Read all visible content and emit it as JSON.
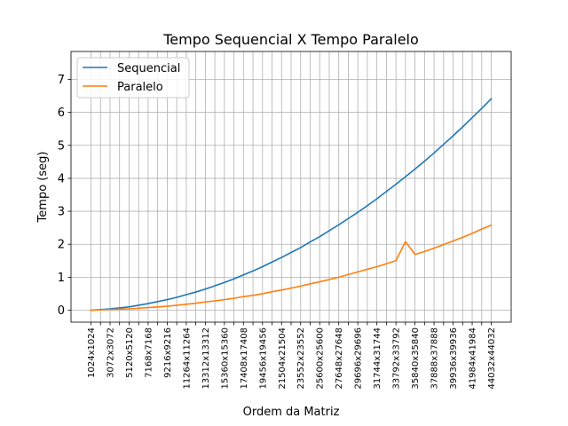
{
  "chart_data": {
    "type": "line",
    "title": "Tempo Sequencial X Tempo Paralelo",
    "xlabel": "Ordem da Matriz",
    "ylabel": "Tempo (seg)",
    "ylim": [
      -0.35,
      7.9
    ],
    "yticks": [
      0,
      1,
      2,
      3,
      4,
      5,
      6,
      7
    ],
    "grid": true,
    "legend_position": "top-left",
    "x_tick_labels": [
      "1024x1024",
      "3072x3072",
      "5120x5120",
      "7168x7168",
      "9216x9216",
      "11264x11264",
      "13312x13312",
      "15360x15360",
      "17408x17408",
      "19456x19456",
      "21504x21504",
      "23552x23552",
      "25600x25600",
      "27648x27648",
      "29696x29696",
      "31744x31744",
      "33792x33792",
      "35840x35840",
      "37888x37888",
      "39936x39936",
      "41984x41984",
      "44032x44032"
    ],
    "x_orders": [
      1024,
      2048,
      3072,
      4096,
      5120,
      6144,
      7168,
      8192,
      9216,
      10240,
      11264,
      12288,
      13312,
      14336,
      15360,
      16384,
      17408,
      18432,
      19456,
      20480,
      21504,
      22528,
      23552,
      24576,
      25600,
      26624,
      27648,
      28672,
      29696,
      30720,
      31744,
      32768,
      33792,
      34816,
      35840,
      36864,
      37888,
      38912,
      39936,
      40960,
      41984,
      43008,
      44032
    ],
    "series": [
      {
        "name": "Sequencial",
        "color": "#1f77b4",
        "values": [
          0.0,
          0.02,
          0.04,
          0.07,
          0.1,
          0.15,
          0.2,
          0.26,
          0.32,
          0.39,
          0.47,
          0.55,
          0.64,
          0.74,
          0.84,
          0.95,
          1.07,
          1.19,
          1.32,
          1.46,
          1.6,
          1.75,
          1.9,
          2.07,
          2.23,
          2.41,
          2.59,
          2.78,
          2.97,
          3.17,
          3.38,
          3.6,
          3.82,
          4.05,
          4.28,
          4.52,
          4.77,
          5.03,
          5.29,
          5.56,
          5.84,
          6.12,
          6.41
        ]
      },
      {
        "name": "Paralelo",
        "color": "#ff7f0e",
        "values": [
          0.0,
          0.01,
          0.02,
          0.03,
          0.04,
          0.06,
          0.08,
          0.1,
          0.12,
          0.15,
          0.18,
          0.21,
          0.25,
          0.28,
          0.32,
          0.36,
          0.41,
          0.45,
          0.5,
          0.56,
          0.61,
          0.67,
          0.73,
          0.8,
          0.86,
          0.93,
          1.0,
          1.08,
          1.16,
          1.24,
          1.32,
          1.41,
          1.5,
          2.08,
          1.69,
          1.78,
          1.88,
          1.99,
          2.1,
          2.21,
          2.33,
          2.46,
          2.58
        ]
      }
    ]
  }
}
